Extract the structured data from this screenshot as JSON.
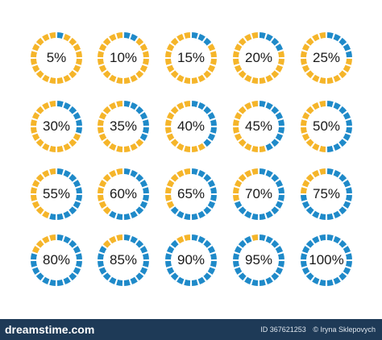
{
  "colors": {
    "complete": "#1f8ac9",
    "remaining": "#f5b52a",
    "footer_bg": "#1e3a57"
  },
  "segments_per_ring": 20,
  "rings": [
    {
      "label": "5%",
      "value": 5
    },
    {
      "label": "10%",
      "value": 10
    },
    {
      "label": "15%",
      "value": 15
    },
    {
      "label": "20%",
      "value": 20
    },
    {
      "label": "25%",
      "value": 25
    },
    {
      "label": "30%",
      "value": 30
    },
    {
      "label": "35%",
      "value": 35
    },
    {
      "label": "40%",
      "value": 40
    },
    {
      "label": "45%",
      "value": 45
    },
    {
      "label": "50%",
      "value": 50
    },
    {
      "label": "55%",
      "value": 55
    },
    {
      "label": "60%",
      "value": 60
    },
    {
      "label": "65%",
      "value": 65
    },
    {
      "label": "70%",
      "value": 70
    },
    {
      "label": "75%",
      "value": 75
    },
    {
      "label": "80%",
      "value": 80
    },
    {
      "label": "85%",
      "value": 85
    },
    {
      "label": "90%",
      "value": 90
    },
    {
      "label": "95%",
      "value": 95
    },
    {
      "label": "100%",
      "value": 100
    }
  ],
  "footer": {
    "logo": "dreamstime.com",
    "id_text": "ID 367621253",
    "author": "© Iryna Sklepovych"
  }
}
